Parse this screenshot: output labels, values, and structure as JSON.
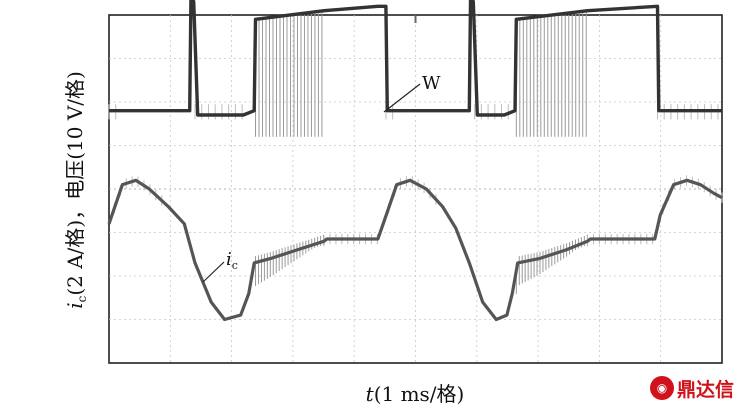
{
  "chart_data": {
    "type": "line",
    "title": "",
    "xlabel": {
      "var": "t",
      "unit": "(1 ms/格)"
    },
    "ylabel": {
      "var": "i",
      "sub": "c",
      "unit": "(2 A/格)，电压(10 V/格)"
    },
    "x_divisions": 10,
    "y_divisions": 8,
    "grid": "dotted",
    "x_unit": "ms",
    "series": [
      {
        "name": "W",
        "chopping": [
          [
            5.4,
            8.0
          ],
          [
            15.1,
            17.8
          ]
        ],
        "points": [
          [
            0.0,
            5.8
          ],
          [
            3.0,
            5.8
          ],
          [
            3.05,
            8.5
          ],
          [
            3.15,
            8.3
          ],
          [
            3.3,
            5.7
          ],
          [
            5.0,
            5.7
          ],
          [
            5.4,
            5.8
          ],
          [
            5.45,
            7.9
          ],
          [
            8.0,
            8.1
          ],
          [
            10.0,
            8.2
          ],
          [
            10.3,
            8.2
          ],
          [
            10.35,
            5.8
          ],
          [
            13.4,
            5.8
          ],
          [
            13.45,
            8.5
          ],
          [
            13.55,
            8.3
          ],
          [
            13.7,
            5.7
          ],
          [
            14.7,
            5.7
          ],
          [
            15.1,
            5.8
          ],
          [
            15.15,
            7.9
          ],
          [
            17.8,
            8.1
          ],
          [
            20.4,
            8.2
          ],
          [
            20.45,
            5.8
          ],
          [
            22.8,
            5.8
          ]
        ]
      },
      {
        "name": "i",
        "sub": "c",
        "chopping": [
          [
            5.4,
            8.0
          ],
          [
            15.1,
            17.8
          ]
        ],
        "points": [
          [
            0.0,
            3.2
          ],
          [
            0.5,
            4.1
          ],
          [
            1.0,
            4.2
          ],
          [
            1.5,
            4.0
          ],
          [
            2.2,
            3.6
          ],
          [
            2.8,
            3.2
          ],
          [
            3.2,
            2.3
          ],
          [
            3.8,
            1.4
          ],
          [
            4.3,
            1.0
          ],
          [
            4.9,
            1.1
          ],
          [
            5.2,
            1.6
          ],
          [
            5.4,
            2.3
          ],
          [
            6.0,
            2.4
          ],
          [
            7.0,
            2.6
          ],
          [
            8.0,
            2.8
          ],
          [
            8.1,
            2.85
          ],
          [
            10.0,
            2.85
          ],
          [
            10.2,
            3.2
          ],
          [
            10.7,
            4.1
          ],
          [
            11.2,
            4.2
          ],
          [
            11.8,
            4.0
          ],
          [
            12.4,
            3.6
          ],
          [
            12.9,
            3.1
          ],
          [
            13.4,
            2.3
          ],
          [
            13.9,
            1.4
          ],
          [
            14.4,
            1.0
          ],
          [
            14.8,
            1.1
          ],
          [
            15.0,
            1.6
          ],
          [
            15.2,
            2.3
          ],
          [
            16.0,
            2.4
          ],
          [
            17.0,
            2.6
          ],
          [
            17.8,
            2.8
          ],
          [
            17.9,
            2.85
          ],
          [
            20.3,
            2.85
          ],
          [
            20.5,
            3.4
          ],
          [
            21.0,
            4.1
          ],
          [
            21.5,
            4.2
          ],
          [
            22.0,
            4.1
          ],
          [
            22.5,
            3.9
          ],
          [
            22.8,
            3.8
          ]
        ]
      }
    ]
  }
}
